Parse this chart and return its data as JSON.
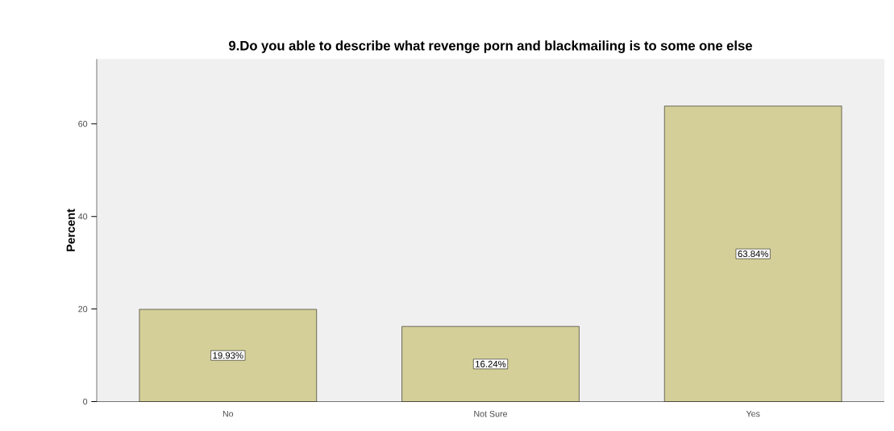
{
  "chart_data": {
    "type": "bar",
    "title": "9.Do you  able to describe what revenge porn and blackmailing is to some one else",
    "ylabel": "Percent",
    "categories": [
      "No",
      "Not Sure",
      "Yes"
    ],
    "values": [
      19.93,
      16.24,
      63.84
    ],
    "value_labels": [
      "19.93%",
      "16.24%",
      "63.84%"
    ],
    "color": "#d4cf98",
    "ylim": [
      0,
      74
    ],
    "yticks": [
      0,
      20,
      40,
      60
    ]
  }
}
